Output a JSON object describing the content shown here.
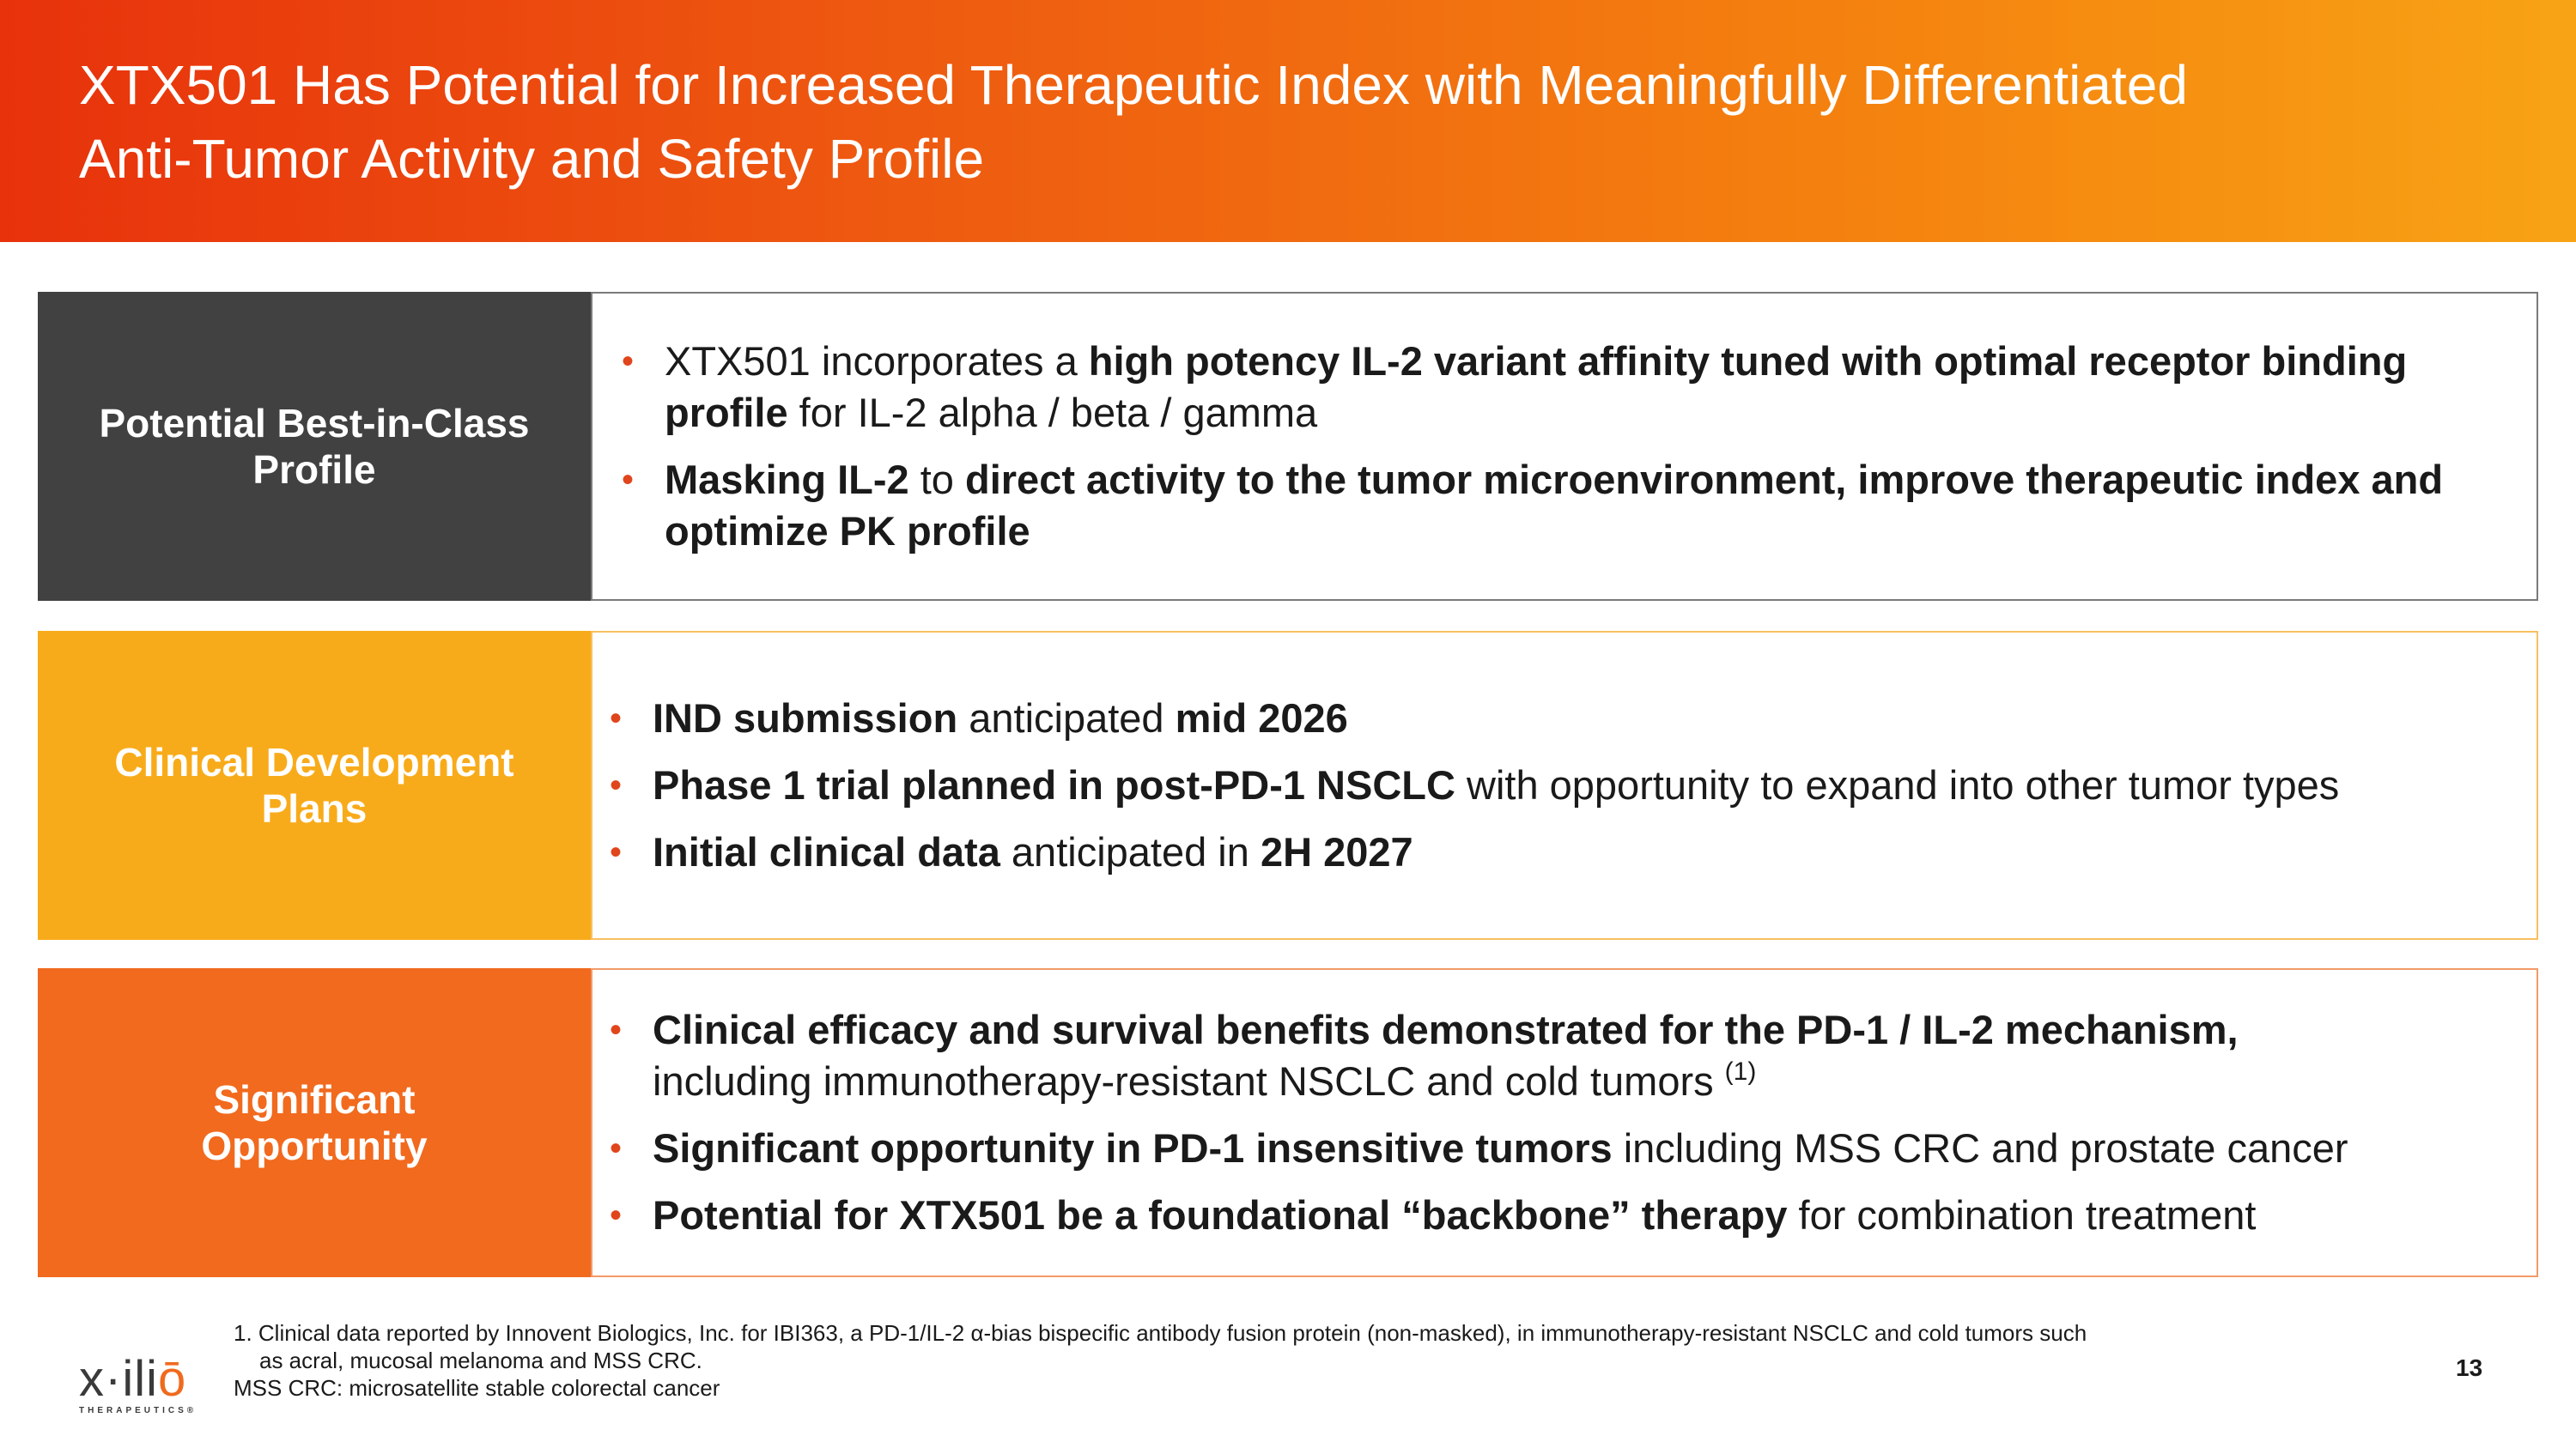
{
  "header": {
    "title_line1": "XTX501 Has Potential for Increased Therapeutic Index with Meaningfully Differentiated",
    "title_line2": "Anti-Tumor Activity and Safety Profile"
  },
  "colors": {
    "header_gradient_start": "#e8320c",
    "header_gradient_end": "#f8a315",
    "row1_label": "#414141",
    "row2_label": "#f8ab1a",
    "row3_label": "#f16a1e",
    "bullet": "#e0451c"
  },
  "rows": [
    {
      "label_line1": "Potential Best-in-Class",
      "label_line2": "Profile",
      "bullets": [
        {
          "seg1": "XTX501 incorporates a ",
          "seg2": "high potency IL-2 variant affinity tuned with optimal receptor binding profile",
          "seg3": " for IL-2 alpha / beta / gamma"
        },
        {
          "seg1": "Masking IL-2",
          "seg2": " to ",
          "seg3": "direct activity to the tumor microenvironment, improve therapeutic index and optimize PK profile"
        }
      ]
    },
    {
      "label_line1": "Clinical Development",
      "label_line2": "Plans",
      "bullets": [
        {
          "seg1": "IND submission",
          "seg2": " anticipated ",
          "seg3": "mid 2026"
        },
        {
          "seg1": "Phase 1 trial planned in post-PD-1 NSCLC",
          "seg2": " with opportunity to expand into other tumor types"
        },
        {
          "seg1": "Initial clinical data",
          "seg2": " anticipated in ",
          "seg3": "2H 2027"
        }
      ]
    },
    {
      "label_line1": "Significant",
      "label_line2": "Opportunity",
      "bullets": [
        {
          "seg1": "Clinical efficacy and survival benefits demonstrated for the PD-1 / IL-2 mechanism,",
          "seg2": "including immunotherapy-resistant NSCLC and cold tumors ",
          "sup": "(1)"
        },
        {
          "seg1": "Significant opportunity in PD-1 insensitive tumors",
          "seg2": " including MSS CRC and prostate cancer"
        },
        {
          "seg1": "Potential for XTX501 be a foundational “backbone” therapy",
          "seg2": " for combination treatment"
        }
      ]
    }
  ],
  "bullet_glyph": "•",
  "footnotes": {
    "note1_line1": "1. Clinical data reported by Innovent Biologics, Inc. for IBI363, a PD-1/IL-2 α-bias bispecific antibody fusion protein (non-masked), in immunotherapy-resistant NSCLC and cold tumors such",
    "note1_line2": "as acral, mucosal melanoma and MSS CRC.",
    "note2": "MSS CRC: microsatellite stable colorectal cancer"
  },
  "logo": {
    "word_prefix": "x·ili",
    "word_o": "ō",
    "subtitle": "THERAPEUTICS®"
  },
  "page_number": "13"
}
